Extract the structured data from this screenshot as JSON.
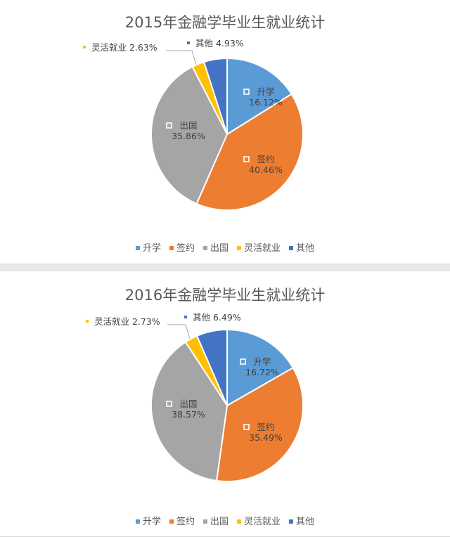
{
  "colors": {
    "升学": "#5b9bd5",
    "签约": "#ed7d31",
    "出国": "#a5a5a5",
    "灵活就业": "#ffc000",
    "其他": "#4472c4"
  },
  "chart_data": [
    {
      "type": "pie",
      "title": "2015年金融学毕业生就业统计",
      "categories": [
        "升学",
        "签约",
        "出国",
        "灵活就业",
        "其他"
      ],
      "values": [
        16.12,
        40.46,
        35.86,
        2.63,
        4.93
      ],
      "value_labels": [
        "16.12%",
        "40.46%",
        "35.86%",
        "2.63%",
        "4.93%"
      ],
      "legend": "bottom"
    },
    {
      "type": "pie",
      "title": "2016年金融学毕业生就业统计",
      "categories": [
        "升学",
        "签约",
        "出国",
        "灵活就业",
        "其他"
      ],
      "values": [
        16.72,
        35.49,
        38.57,
        2.73,
        6.49
      ],
      "value_labels": [
        "16.72%",
        "35.49%",
        "38.57%",
        "2.73%",
        "6.49%"
      ],
      "legend": "bottom"
    }
  ]
}
